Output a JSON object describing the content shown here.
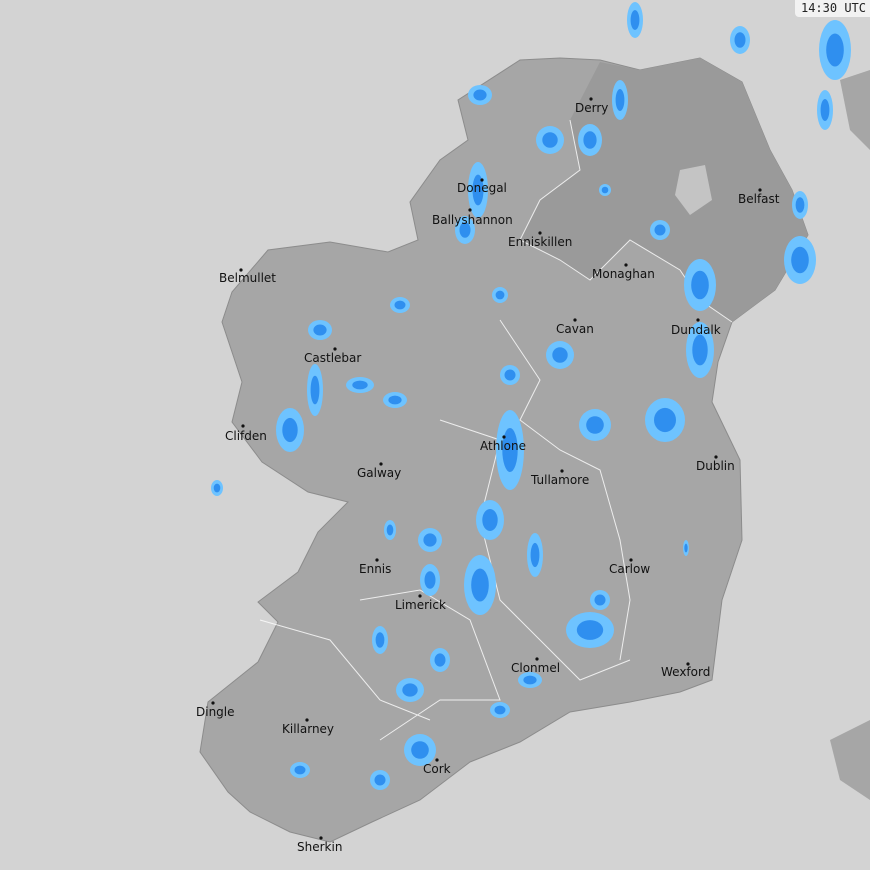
{
  "timestamp": "14:30 UTC",
  "colors": {
    "sea": "#d3d3d3",
    "land": "#a6a6a6",
    "northern_ireland": "#9a9a9a",
    "rain_light": "#6ec3ff",
    "rain_medium": "#2f8fef",
    "rain_heavy": "#1560d0",
    "borders": "#ffffff"
  },
  "cities": [
    {
      "name": "Derry"
    },
    {
      "name": "Belfast"
    },
    {
      "name": "Donegal"
    },
    {
      "name": "Ballyshannon"
    },
    {
      "name": "Enniskillen"
    },
    {
      "name": "Monaghan"
    },
    {
      "name": "Belmullet"
    },
    {
      "name": "Cavan"
    },
    {
      "name": "Dundalk"
    },
    {
      "name": "Castlebar"
    },
    {
      "name": "Clifden"
    },
    {
      "name": "Athlone"
    },
    {
      "name": "Galway"
    },
    {
      "name": "Tullamore"
    },
    {
      "name": "Dublin"
    },
    {
      "name": "Ennis"
    },
    {
      "name": "Carlow"
    },
    {
      "name": "Limerick"
    },
    {
      "name": "Clonmel"
    },
    {
      "name": "Wexford"
    },
    {
      "name": "Dingle"
    },
    {
      "name": "Killarney"
    },
    {
      "name": "Cork"
    },
    {
      "name": "Sherkin"
    }
  ]
}
